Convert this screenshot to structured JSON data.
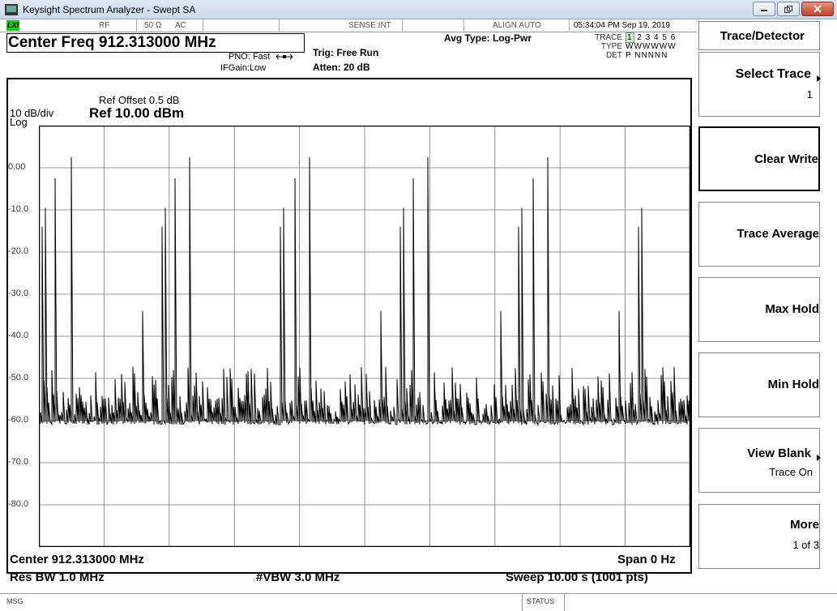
{
  "window": {
    "title": "Keysight Spectrum Analyzer - Swept SA"
  },
  "status_row": {
    "lxi": "LXI",
    "rf": "RF",
    "impedance": "50 Ω",
    "coupling": "AC",
    "sense": "SENSE:INT",
    "align": "ALIGN AUTO",
    "datetime": "05:34:04 PM Sep 19, 2019"
  },
  "header": {
    "center_freq": "Center Freq 912.313000 MHz",
    "pno": "PNO: Fast",
    "ifgain": "IFGain:Low",
    "trig": "Trig: Free Run",
    "atten": "Atten: 20 dB",
    "avg_type": "Avg Type: Log-Pwr",
    "trace_label": "TRACE",
    "trace_values": "2 3 4 5 6",
    "trace_active": "1",
    "type_label": "TYPE",
    "type_values": "WWWWWW",
    "det_label": "DET",
    "det_values": "P NNNNN"
  },
  "graph": {
    "ref_offset": "Ref Offset 0.5 dB",
    "scale": "10 dB/div",
    "ref_level": "Ref 10.00 dBm",
    "log": "Log",
    "y_labels": [
      "0.00",
      "-10.0",
      "-20.0",
      "-30.0",
      "-40.0",
      "-50.0",
      "-60.0",
      "-70.0",
      "-80.0"
    ],
    "center": "Center 912.313000 MHz",
    "span": "Span 0 Hz",
    "res_bw": "Res BW 1.0 MHz",
    "vbw": "#VBW 3.0 MHz",
    "sweep": "Sweep  10.00 s (1001 pts)"
  },
  "chart_data": {
    "type": "line",
    "title": "",
    "xlabel": "",
    "ylabel": "",
    "ylim": [
      -90,
      10
    ],
    "x_range": [
      0,
      10
    ],
    "trace_color": "#000000",
    "noise_floor_range": [
      -61,
      -47
    ],
    "pulse_groups_x": [
      0.05,
      1.88,
      3.71,
      5.54,
      7.37,
      9.2
    ],
    "pulse_levels_dbm": [
      -14,
      -9.5,
      -2.5,
      2.5,
      -34
    ],
    "pulse_offsets": [
      0.0,
      0.05,
      0.21,
      0.44,
      1.54
    ],
    "last_group_pulses": 2
  },
  "softkeys": {
    "menu_title": "Trace/Detector",
    "select_trace": "Select Trace",
    "select_trace_value": "1",
    "clear_write": "Clear Write",
    "trace_average": "Trace Average",
    "max_hold": "Max Hold",
    "min_hold": "Min Hold",
    "view_blank": "View Blank",
    "view_blank_value": "Trace On",
    "more": "More",
    "more_value": "1 of 3"
  },
  "message_bar": {
    "msg": "MSG",
    "status": "STATUS"
  }
}
